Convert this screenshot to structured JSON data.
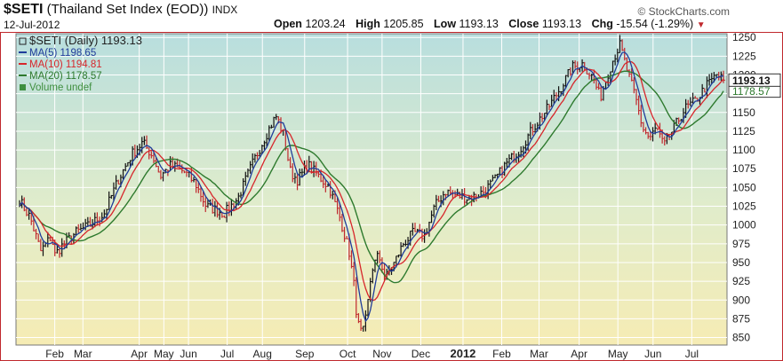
{
  "header": {
    "symbol": "$SETI",
    "name": "(Thailand Set Index (EOD))",
    "exchange": "INDX",
    "date": "12-Jul-2012",
    "brand": "© StockCharts.com",
    "open_label": "Open",
    "open": "1203.24",
    "high_label": "High",
    "high": "1205.85",
    "low_label": "Low",
    "low": "1193.13",
    "close_label": "Close",
    "close": "1193.13",
    "chg_label": "Chg",
    "chg": "-15.54 (-1.29%)"
  },
  "legend": [
    {
      "text": "$SETI (Daily) 1193.13",
      "color": "#222222"
    },
    {
      "text": "MA(5) 1198.65",
      "color": "#1f3c9a"
    },
    {
      "text": "MA(10) 1194.81",
      "color": "#d7262b"
    },
    {
      "text": "MA(20) 1178.57",
      "color": "#2e7a2e"
    },
    {
      "text": "Volume undef",
      "color": "#3f8f3f"
    }
  ],
  "chart_data": {
    "type": "line",
    "title": "$SETI (Thailand Set Index (EOD))",
    "ylim": [
      840,
      1255
    ],
    "y_ticks": [
      850,
      875,
      900,
      925,
      950,
      975,
      1000,
      1025,
      1050,
      1075,
      1100,
      1125,
      1150,
      1175,
      1200,
      1225,
      1250
    ],
    "x_ticks": [
      {
        "label": "Feb",
        "bold": false,
        "t": 0.05
      },
      {
        "label": "Mar",
        "bold": false,
        "t": 0.09
      },
      {
        "label": "Apr",
        "bold": false,
        "t": 0.17
      },
      {
        "label": "May",
        "bold": false,
        "t": 0.205
      },
      {
        "label": "Jun",
        "bold": false,
        "t": 0.24
      },
      {
        "label": "Jul",
        "bold": false,
        "t": 0.295
      },
      {
        "label": "Aug",
        "bold": false,
        "t": 0.345
      },
      {
        "label": "Sep",
        "bold": false,
        "t": 0.405
      },
      {
        "label": "Oct",
        "bold": false,
        "t": 0.466
      },
      {
        "label": "Nov",
        "bold": false,
        "t": 0.515
      },
      {
        "label": "Dec",
        "bold": false,
        "t": 0.57
      },
      {
        "label": "2012",
        "bold": true,
        "t": 0.63
      },
      {
        "label": "Feb",
        "bold": false,
        "t": 0.685
      },
      {
        "label": "Mar",
        "bold": false,
        "t": 0.738
      },
      {
        "label": "Apr",
        "bold": false,
        "t": 0.795
      },
      {
        "label": "May",
        "bold": false,
        "t": 0.85
      },
      {
        "label": "Jun",
        "bold": false,
        "t": 0.9
      },
      {
        "label": "Jul",
        "bold": false,
        "t": 0.955
      }
    ],
    "price_keypoints": [
      [
        0.0,
        1033
      ],
      [
        0.015,
        1010
      ],
      [
        0.03,
        965
      ],
      [
        0.045,
        985
      ],
      [
        0.05,
        960
      ],
      [
        0.06,
        972
      ],
      [
        0.08,
        990
      ],
      [
        0.1,
        1000
      ],
      [
        0.12,
        1015
      ],
      [
        0.14,
        1060
      ],
      [
        0.16,
        1095
      ],
      [
        0.175,
        1110
      ],
      [
        0.19,
        1090
      ],
      [
        0.2,
        1065
      ],
      [
        0.215,
        1080
      ],
      [
        0.235,
        1070
      ],
      [
        0.25,
        1055
      ],
      [
        0.265,
        1025
      ],
      [
        0.28,
        1020
      ],
      [
        0.29,
        1015
      ],
      [
        0.31,
        1035
      ],
      [
        0.33,
        1080
      ],
      [
        0.35,
        1120
      ],
      [
        0.36,
        1138
      ],
      [
        0.365,
        1145
      ],
      [
        0.375,
        1120
      ],
      [
        0.385,
        1070
      ],
      [
        0.395,
        1060
      ],
      [
        0.41,
        1080
      ],
      [
        0.425,
        1065
      ],
      [
        0.44,
        1050
      ],
      [
        0.455,
        1010
      ],
      [
        0.468,
        965
      ],
      [
        0.475,
        920
      ],
      [
        0.48,
        870
      ],
      [
        0.487,
        852
      ],
      [
        0.493,
        880
      ],
      [
        0.5,
        940
      ],
      [
        0.51,
        960
      ],
      [
        0.52,
        930
      ],
      [
        0.53,
        945
      ],
      [
        0.545,
        975
      ],
      [
        0.56,
        990
      ],
      [
        0.575,
        985
      ],
      [
        0.59,
        1025
      ],
      [
        0.605,
        1045
      ],
      [
        0.62,
        1040
      ],
      [
        0.64,
        1035
      ],
      [
        0.66,
        1045
      ],
      [
        0.675,
        1060
      ],
      [
        0.69,
        1080
      ],
      [
        0.71,
        1100
      ],
      [
        0.73,
        1130
      ],
      [
        0.75,
        1155
      ],
      [
        0.77,
        1185
      ],
      [
        0.785,
        1210
      ],
      [
        0.8,
        1215
      ],
      [
        0.815,
        1195
      ],
      [
        0.825,
        1170
      ],
      [
        0.835,
        1200
      ],
      [
        0.845,
        1225
      ],
      [
        0.853,
        1240
      ],
      [
        0.865,
        1200
      ],
      [
        0.875,
        1170
      ],
      [
        0.885,
        1130
      ],
      [
        0.895,
        1115
      ],
      [
        0.905,
        1130
      ],
      [
        0.915,
        1105
      ],
      [
        0.93,
        1130
      ],
      [
        0.945,
        1155
      ],
      [
        0.96,
        1165
      ],
      [
        0.975,
        1185
      ],
      [
        0.99,
        1200
      ],
      [
        1.0,
        1193
      ]
    ],
    "series": [
      {
        "name": "$SETI (Daily)",
        "last": 1193.13,
        "color": "#111111"
      },
      {
        "name": "MA(5)",
        "last": 1198.65,
        "color": "#1f3c9a"
      },
      {
        "name": "MA(10)",
        "last": 1194.81,
        "color": "#d7262b"
      },
      {
        "name": "MA(20)",
        "last": 1178.57,
        "color": "#2e7a2e"
      }
    ],
    "price_label": "1193.13",
    "ma20_label": "1178.57",
    "grid": true,
    "legend_position": "top-left"
  }
}
